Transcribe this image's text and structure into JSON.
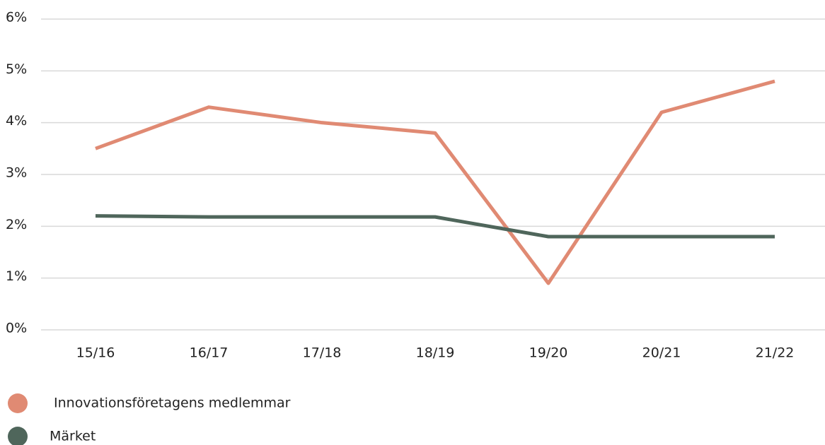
{
  "chart_data": {
    "type": "line",
    "categories": [
      "15/16",
      "16/17",
      "17/18",
      "18/19",
      "19/20",
      "20/21",
      "21/22"
    ],
    "series": [
      {
        "name": "Innovationsföretagens medlemmar",
        "color": "#e08a73",
        "values": [
          3.5,
          4.3,
          4.0,
          3.8,
          0.9,
          4.2,
          4.8
        ]
      },
      {
        "name": "Märket",
        "color": "#4f665b",
        "values": [
          2.2,
          2.18,
          2.18,
          2.18,
          1.8,
          1.8,
          1.8
        ]
      }
    ],
    "ylim": [
      0,
      6
    ],
    "yticks": [
      {
        "value": 0,
        "label": "0%"
      },
      {
        "value": 1,
        "label": "1%"
      },
      {
        "value": 2,
        "label": "2%"
      },
      {
        "value": 3,
        "label": "3%"
      },
      {
        "value": 4,
        "label": "4%"
      },
      {
        "value": 5,
        "label": "5%"
      },
      {
        "value": 6,
        "label": "6%"
      }
    ],
    "grid": true
  }
}
